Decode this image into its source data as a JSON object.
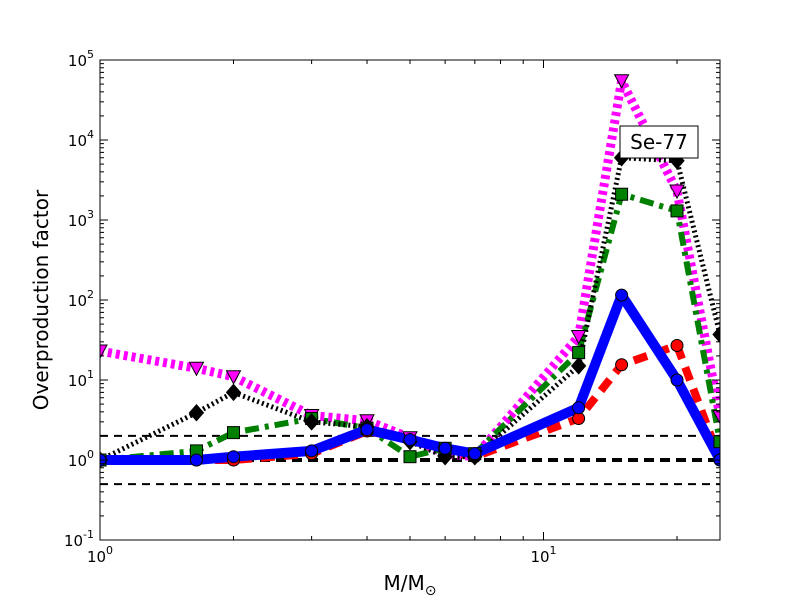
{
  "chart_data": {
    "type": "line",
    "title": "",
    "xlabel": "M/M",
    "xlabel_sub": "⊙",
    "ylabel": "Overproduction factor",
    "xscale": "log",
    "yscale": "log",
    "xlim": [
      1,
      25
    ],
    "ylim": [
      0.1,
      100000
    ],
    "x_ticks": [
      {
        "value": 1,
        "base": "10",
        "exp": "0"
      },
      {
        "value": 10,
        "base": "10",
        "exp": "1"
      }
    ],
    "y_ticks": [
      {
        "value": 0.1,
        "base": "10",
        "exp": "-1"
      },
      {
        "value": 1,
        "base": "10",
        "exp": "0"
      },
      {
        "value": 10,
        "base": "10",
        "exp": "1"
      },
      {
        "value": 100,
        "base": "10",
        "exp": "2"
      },
      {
        "value": 1000,
        "base": "10",
        "exp": "3"
      },
      {
        "value": 10000,
        "base": "10",
        "exp": "4"
      },
      {
        "value": 100000,
        "base": "10",
        "exp": "5"
      }
    ],
    "annotation": "Se-77",
    "reference_lines": [
      {
        "y": 2,
        "style": "dashed",
        "color": "#000000"
      },
      {
        "y": 1,
        "style": "dashed-thick",
        "color": "#000000"
      },
      {
        "y": 0.5,
        "style": "dashed",
        "color": "#000000"
      }
    ],
    "series": [
      {
        "style": "dashed",
        "color": "#ff0000",
        "marker": "circle",
        "x": [
          1,
          1.65,
          2,
          3,
          4,
          5,
          6,
          7,
          12,
          15,
          20,
          25
        ],
        "y": [
          1.0,
          1.0,
          1.0,
          1.2,
          2.3,
          1.8,
          1.3,
          1.1,
          3.3,
          15.5,
          27,
          1.0
        ]
      },
      {
        "style": "dotted",
        "color": "#ff00ff",
        "marker": "triangle-down",
        "x": [
          1,
          1.65,
          2,
          3,
          4,
          5,
          6,
          7,
          12,
          15,
          20,
          25
        ],
        "y": [
          23,
          14,
          11,
          3.6,
          3.1,
          1.9,
          1.2,
          1.1,
          35,
          55000,
          2300,
          3.5
        ]
      },
      {
        "style": "dashdot",
        "color": "#008000",
        "marker": "square",
        "x": [
          1,
          1.65,
          2,
          3,
          4,
          5,
          6,
          7,
          12,
          15,
          20,
          25
        ],
        "y": [
          1.0,
          1.3,
          2.2,
          3.3,
          2.5,
          1.1,
          1.4,
          1.2,
          22,
          2100,
          1300,
          1.7
        ]
      },
      {
        "style": "dotted-dense",
        "color": "#000000",
        "marker": "diamond",
        "x": [
          1,
          1.65,
          2,
          3,
          4,
          5,
          6,
          7,
          12,
          15,
          20,
          25
        ],
        "y": [
          1.0,
          3.9,
          7.0,
          3.0,
          2.6,
          1.7,
          1.1,
          1.1,
          15,
          6000,
          5500,
          37
        ]
      },
      {
        "style": "solid",
        "color": "#0000ff",
        "marker": "circle",
        "x": [
          1,
          1.65,
          2,
          3,
          4,
          5,
          6,
          7,
          12,
          15,
          20,
          25
        ],
        "y": [
          1.0,
          1.0,
          1.1,
          1.3,
          2.4,
          1.8,
          1.4,
          1.2,
          4.5,
          115,
          10,
          1.0
        ]
      }
    ]
  }
}
